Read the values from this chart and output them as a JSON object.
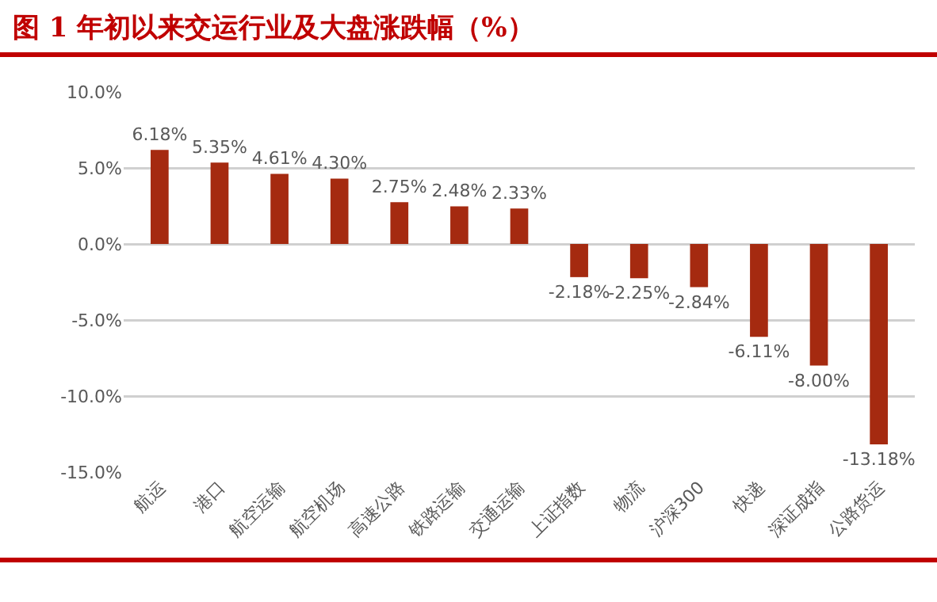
{
  "chart_data": {
    "type": "bar",
    "title": "图 1   年初以来交运行业及大盘涨跌幅（%）",
    "categories": [
      "航运",
      "港口",
      "航空运输",
      "航空机场",
      "高速公路",
      "铁路运输",
      "交通运输",
      "上证指数",
      "物流",
      "沪深300",
      "快递",
      "深证成指",
      "公路货运"
    ],
    "values": [
      6.18,
      5.35,
      4.61,
      4.3,
      2.75,
      2.48,
      2.33,
      -2.18,
      -2.25,
      -2.84,
      -6.11,
      -8.0,
      -13.18
    ],
    "value_labels": [
      "6.18%",
      "5.35%",
      "4.61%",
      "4.30%",
      "2.75%",
      "2.48%",
      "2.33%",
      "-2.18%",
      "-2.25%",
      "-2.84%",
      "-6.11%",
      "-8.00%",
      "-13.18%"
    ],
    "color": "#a52a10",
    "ylim": [
      -15,
      10
    ],
    "yticks": [
      {
        "value": -15,
        "label": "-15.0%"
      },
      {
        "value": -10,
        "label": "-10.0%"
      },
      {
        "value": -5,
        "label": "-5.0%"
      },
      {
        "value": 0,
        "label": "0.0%"
      },
      {
        "value": 5,
        "label": "5.0%"
      },
      {
        "value": 10,
        "label": "10.0%"
      }
    ],
    "grid": "y"
  }
}
